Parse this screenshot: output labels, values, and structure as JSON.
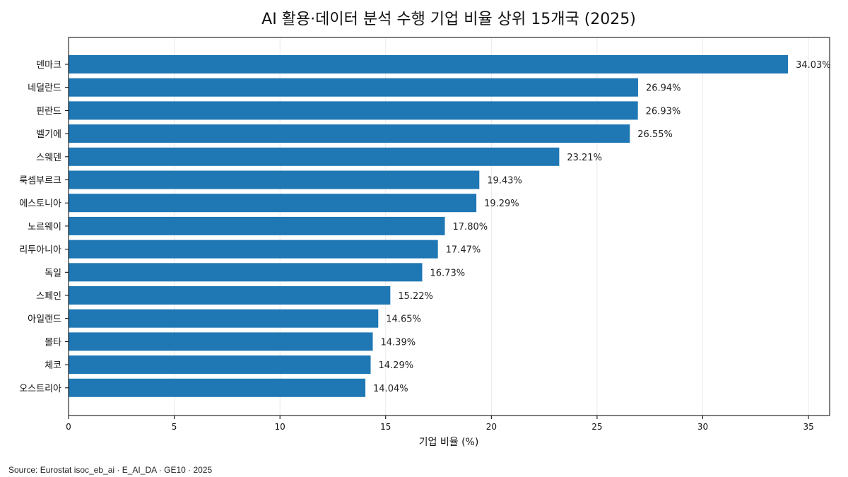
{
  "chart_data": {
    "type": "bar",
    "orientation": "horizontal",
    "title": "AI 활용·데이터 분석 수행 기업 비율 상위 15개국 (2025)",
    "xlabel": "기업 비율 (%)",
    "ylabel": "",
    "xlim": [
      0,
      36
    ],
    "xticks": [
      0,
      5,
      10,
      15,
      20,
      25,
      30,
      35
    ],
    "grid": "vertical",
    "bar_color": "#1f77b4",
    "categories": [
      "덴마크",
      "네덜란드",
      "핀란드",
      "벨기에",
      "스웨덴",
      "룩셈부르크",
      "에스토니아",
      "노르웨이",
      "리투아니아",
      "독일",
      "스페인",
      "아일랜드",
      "몰타",
      "체코",
      "오스트리아"
    ],
    "values": [
      34.03,
      26.94,
      26.93,
      26.55,
      23.21,
      19.43,
      19.29,
      17.8,
      17.47,
      16.73,
      15.22,
      14.65,
      14.39,
      14.29,
      14.04
    ],
    "value_labels": [
      "34.03%",
      "26.94%",
      "26.93%",
      "26.55%",
      "23.21%",
      "19.43%",
      "19.29%",
      "17.80%",
      "17.47%",
      "16.73%",
      "15.22%",
      "14.65%",
      "14.39%",
      "14.29%",
      "14.04%"
    ],
    "source": "Source: Eurostat isoc_eb_ai · E_AI_DA · GE10 · 2025"
  }
}
